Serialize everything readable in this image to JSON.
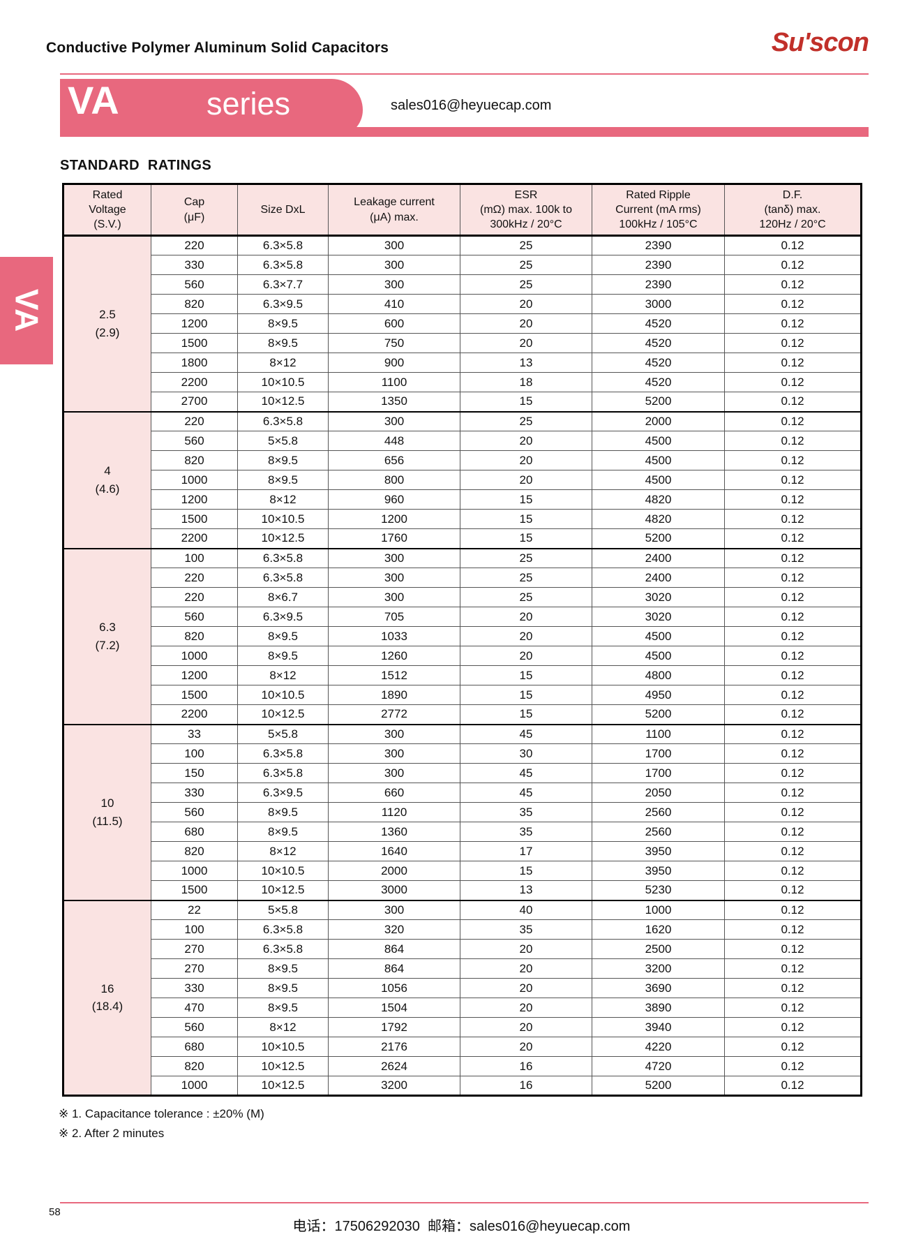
{
  "header": {
    "title": "Conductive Polymer Aluminum Solid Capacitors",
    "brand": "Su'scon"
  },
  "banner": {
    "series_code": "VA",
    "series_label": "series",
    "email": "sales016@heyuecap.com"
  },
  "side_tab": {
    "label": "VA"
  },
  "section": {
    "title": "STANDARD  RATINGS"
  },
  "table": {
    "headers": [
      "Rated\nVoltage\n(S.V.)",
      "Cap\n(μF)",
      "Size DxL",
      "Leakage current\n(μA) max.",
      "ESR\n(mΩ) max. 100k to\n300kHz / 20°C",
      "Rated Ripple\nCurrent (mA rms)\n100kHz / 105°C",
      "D.F.\n(tanδ) max.\n120Hz / 20°C"
    ],
    "groups": [
      {
        "voltage": "2.5\n(2.9)",
        "rows": [
          [
            "220",
            "6.3×5.8",
            "300",
            "25",
            "2390",
            "0.12"
          ],
          [
            "330",
            "6.3×5.8",
            "300",
            "25",
            "2390",
            "0.12"
          ],
          [
            "560",
            "6.3×7.7",
            "300",
            "25",
            "2390",
            "0.12"
          ],
          [
            "820",
            "6.3×9.5",
            "410",
            "20",
            "3000",
            "0.12"
          ],
          [
            "1200",
            "8×9.5",
            "600",
            "20",
            "4520",
            "0.12"
          ],
          [
            "1500",
            "8×9.5",
            "750",
            "20",
            "4520",
            "0.12"
          ],
          [
            "1800",
            "8×12",
            "900",
            "13",
            "4520",
            "0.12"
          ],
          [
            "2200",
            "10×10.5",
            "1100",
            "18",
            "4520",
            "0.12"
          ],
          [
            "2700",
            "10×12.5",
            "1350",
            "15",
            "5200",
            "0.12"
          ]
        ]
      },
      {
        "voltage": "4\n(4.6)",
        "rows": [
          [
            "220",
            "6.3×5.8",
            "300",
            "25",
            "2000",
            "0.12"
          ],
          [
            "560",
            "5×5.8",
            "448",
            "20",
            "4500",
            "0.12"
          ],
          [
            "820",
            "8×9.5",
            "656",
            "20",
            "4500",
            "0.12"
          ],
          [
            "1000",
            "8×9.5",
            "800",
            "20",
            "4500",
            "0.12"
          ],
          [
            "1200",
            "8×12",
            "960",
            "15",
            "4820",
            "0.12"
          ],
          [
            "1500",
            "10×10.5",
            "1200",
            "15",
            "4820",
            "0.12"
          ],
          [
            "2200",
            "10×12.5",
            "1760",
            "15",
            "5200",
            "0.12"
          ]
        ]
      },
      {
        "voltage": "6.3\n(7.2)",
        "rows": [
          [
            "100",
            "6.3×5.8",
            "300",
            "25",
            "2400",
            "0.12"
          ],
          [
            "220",
            "6.3×5.8",
            "300",
            "25",
            "2400",
            "0.12"
          ],
          [
            "220",
            "8×6.7",
            "300",
            "25",
            "3020",
            "0.12"
          ],
          [
            "560",
            "6.3×9.5",
            "705",
            "20",
            "3020",
            "0.12"
          ],
          [
            "820",
            "8×9.5",
            "1033",
            "20",
            "4500",
            "0.12"
          ],
          [
            "1000",
            "8×9.5",
            "1260",
            "20",
            "4500",
            "0.12"
          ],
          [
            "1200",
            "8×12",
            "1512",
            "15",
            "4800",
            "0.12"
          ],
          [
            "1500",
            "10×10.5",
            "1890",
            "15",
            "4950",
            "0.12"
          ],
          [
            "2200",
            "10×12.5",
            "2772",
            "15",
            "5200",
            "0.12"
          ]
        ]
      },
      {
        "voltage": "10\n(11.5)",
        "rows": [
          [
            "33",
            "5×5.8",
            "300",
            "45",
            "1100",
            "0.12"
          ],
          [
            "100",
            "6.3×5.8",
            "300",
            "30",
            "1700",
            "0.12"
          ],
          [
            "150",
            "6.3×5.8",
            "300",
            "45",
            "1700",
            "0.12"
          ],
          [
            "330",
            "6.3×9.5",
            "660",
            "45",
            "2050",
            "0.12"
          ],
          [
            "560",
            "8×9.5",
            "1120",
            "35",
            "2560",
            "0.12"
          ],
          [
            "680",
            "8×9.5",
            "1360",
            "35",
            "2560",
            "0.12"
          ],
          [
            "820",
            "8×12",
            "1640",
            "17",
            "3950",
            "0.12"
          ],
          [
            "1000",
            "10×10.5",
            "2000",
            "15",
            "3950",
            "0.12"
          ],
          [
            "1500",
            "10×12.5",
            "3000",
            "13",
            "5230",
            "0.12"
          ]
        ]
      },
      {
        "voltage": "16\n(18.4)",
        "rows": [
          [
            "22",
            "5×5.8",
            "300",
            "40",
            "1000",
            "0.12"
          ],
          [
            "100",
            "6.3×5.8",
            "320",
            "35",
            "1620",
            "0.12"
          ],
          [
            "270",
            "6.3×5.8",
            "864",
            "20",
            "2500",
            "0.12"
          ],
          [
            "270",
            "8×9.5",
            "864",
            "20",
            "3200",
            "0.12"
          ],
          [
            "330",
            "8×9.5",
            "1056",
            "20",
            "3690",
            "0.12"
          ],
          [
            "470",
            "8×9.5",
            "1504",
            "20",
            "3890",
            "0.12"
          ],
          [
            "560",
            "8×12",
            "1792",
            "20",
            "3940",
            "0.12"
          ],
          [
            "680",
            "10×10.5",
            "2176",
            "20",
            "4220",
            "0.12"
          ],
          [
            "820",
            "10×12.5",
            "2624",
            "16",
            "4720",
            "0.12"
          ],
          [
            "1000",
            "10×12.5",
            "3200",
            "16",
            "5200",
            "0.12"
          ]
        ]
      }
    ]
  },
  "notes": [
    "※ 1. Capacitance tolerance : ±20% (M)",
    "※ 2. After 2 minutes"
  ],
  "footer": {
    "page_number": "58",
    "contact": "电话：17506292030  邮箱：sales016@heyuecap.com"
  },
  "colors": {
    "accent_pink": "#e8687e",
    "light_pink": "#fae3e2",
    "brand_red": "#c1302a"
  }
}
